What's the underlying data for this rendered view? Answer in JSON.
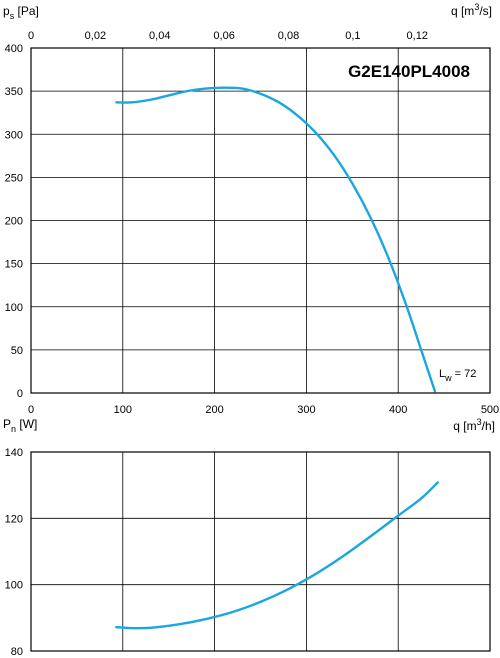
{
  "chart_data": [
    {
      "type": "line",
      "title": "G2E140PL4008",
      "ylabel_main": "p",
      "ylabel_sub": "s",
      "ylabel_unit": " [Pa]",
      "xlabel_top_main": "q [m",
      "xlabel_top_sup": "3",
      "xlabel_top_tail": "/s]",
      "xlim": [
        0,
        500
      ],
      "ylim": [
        0,
        400
      ],
      "x_ticks": [
        "0",
        "100",
        "200",
        "300",
        "400",
        "500"
      ],
      "y_ticks": [
        "0",
        "50",
        "100",
        "150",
        "200",
        "250",
        "300",
        "350",
        "400"
      ],
      "x_top_ticks": [
        "0",
        "0,02",
        "0,04",
        "0,06",
        "0,08",
        "0,1",
        "0,12"
      ],
      "annotation_main": "L",
      "annotation_sub": "w",
      "annotation_tail": " = 72",
      "grid": true,
      "line_color": "#1aa7e0",
      "series": [
        {
          "x": [
            93,
            110,
            130,
            150,
            170,
            190,
            210,
            230,
            250,
            270,
            290,
            310,
            330,
            350,
            370,
            390,
            410,
            425,
            440
          ],
          "y": [
            337,
            337,
            340,
            345,
            350,
            353,
            354,
            353,
            347,
            337,
            322,
            302,
            276,
            243,
            203,
            155,
            98,
            50,
            2
          ]
        }
      ]
    },
    {
      "type": "line",
      "ylabel_main": "P",
      "ylabel_sub": "n",
      "ylabel_unit": " [W]",
      "xlabel_main": "q [m",
      "xlabel_sup": "3",
      "xlabel_tail": "/h]",
      "xlim": [
        0,
        500
      ],
      "ylim": [
        80,
        140
      ],
      "y_ticks": [
        "80",
        "100",
        "120",
        "140"
      ],
      "grid": true,
      "line_color": "#1aa7e0",
      "series": [
        {
          "x": [
            93,
            110,
            130,
            160,
            190,
            220,
            250,
            280,
            310,
            340,
            370,
            400,
            425,
            443
          ],
          "y": [
            87.2,
            86.9,
            87.0,
            88.0,
            89.6,
            91.8,
            94.8,
            98.6,
            103.2,
            108.6,
            114.6,
            120.8,
            126.0,
            130.8
          ]
        }
      ]
    }
  ]
}
